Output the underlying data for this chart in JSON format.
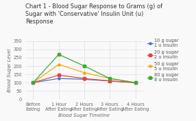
{
  "title": "Chart 1 - Blood Sugar Response to Grams (g) of\nSugar with 'Conservative' Insulin Unit (u)\nResponse",
  "xlabel": "Blood Sugar Timeline",
  "ylabel": "Blood Sugar Level",
  "x_labels": [
    "Before\nEating",
    "1 Hour\nAfter Eating",
    "2 Hours\nAfter Eating",
    "3 Hours\nAfter Eating",
    "4 Hours\nAfter Eating"
  ],
  "x_values": [
    0,
    1,
    2,
    3,
    4
  ],
  "series": [
    {
      "label": "10 g sugar\n1 u insulin",
      "color": "#4472C4",
      "values": [
        100,
        125,
        120,
        110,
        100
      ],
      "marker": "o"
    },
    {
      "label": "20 g sugar\n2 u insulin",
      "color": "#E84040",
      "values": [
        100,
        145,
        125,
        110,
        100
      ],
      "marker": "s"
    },
    {
      "label": "50 g sugar\n5 u insulin",
      "color": "#FFA500",
      "values": [
        100,
        210,
        160,
        125,
        100
      ],
      "marker": "o"
    },
    {
      "label": "80 g sugar\n8 u insulin",
      "color": "#3AAA35",
      "values": [
        100,
        270,
        200,
        125,
        100
      ],
      "marker": "s"
    }
  ],
  "ylim": [
    0,
    350
  ],
  "yticks": [
    0,
    50,
    100,
    150,
    200,
    250,
    300,
    350
  ],
  "background_color": "#F9F9F9",
  "title_fontsize": 6.0,
  "axis_label_fontsize": 5.0,
  "tick_fontsize": 4.8,
  "legend_fontsize": 4.8
}
